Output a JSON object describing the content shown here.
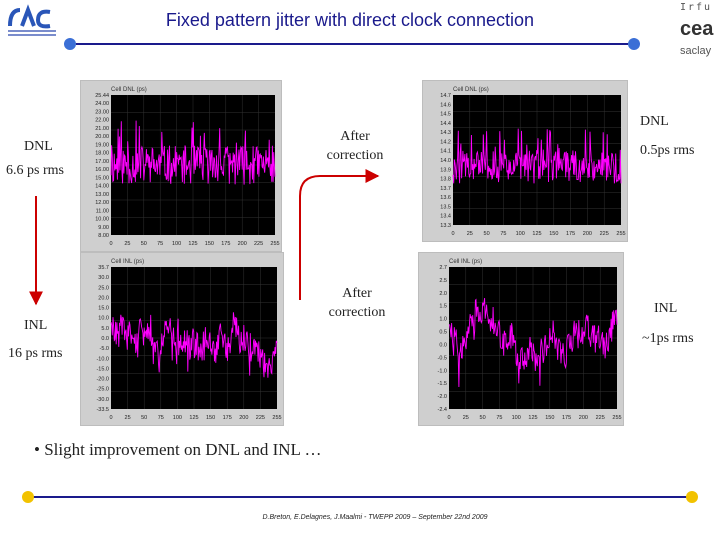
{
  "slide": {
    "title": "Fixed pattern jitter with direct clock connection",
    "footer": "D.Breton, E.Delagnes, J.Maalmi - TWEPP 2009 – September 22nd 2009",
    "bullet": "Slight improvement on DNL and INL …"
  },
  "logos": {
    "left_alt": "LAL logo",
    "right_lines": [
      "Irfu",
      "cea",
      "saclay"
    ]
  },
  "labels": {
    "dnl_before_title": "DNL",
    "dnl_before_value": "6.6 ps rms",
    "inl_before_title": "INL",
    "inl_before_value": "16 ps rms",
    "after_correction_1": "After\ncorrection",
    "after_correction_2": "After\ncorrection",
    "dnl_after_title": "DNL",
    "dnl_after_value": "0.5ps rms",
    "inl_after_title": "INL",
    "inl_after_value": "~1ps rms"
  },
  "colors": {
    "title": "#1a1a8c",
    "trace": "#ff00ff",
    "plot_bg": "#000000",
    "arrow": "#cc0000",
    "divider": "#1a1a8c",
    "dot": "#3b6fd6",
    "footer_dot": "#f2c200"
  },
  "plots": {
    "dnl_before": {
      "header": "Cell DNL (ps)",
      "y_ticks": [
        "25.44",
        "24.00",
        "23.00",
        "22.00",
        "21.00",
        "20.00",
        "19.00",
        "18.00",
        "17.00",
        "16.00",
        "15.00",
        "14.00",
        "13.00",
        "12.00",
        "11.00",
        "10.00",
        "9.00",
        "8.00"
      ],
      "x_ticks": [
        "0",
        "25",
        "50",
        "75",
        "100",
        "125",
        "150",
        "175",
        "200",
        "225",
        "255"
      ]
    },
    "inl_before": {
      "header": "Cell INL (ps)",
      "y_ticks": [
        "35.7",
        "30.0",
        "25.0",
        "20.0",
        "15.0",
        "10.0",
        "5.0",
        "0.0",
        "-5.0",
        "-10.0",
        "-15.0",
        "-20.0",
        "-25.0",
        "-30.0",
        "-33.5"
      ],
      "x_ticks": [
        "0",
        "25",
        "50",
        "75",
        "100",
        "125",
        "150",
        "175",
        "200",
        "225",
        "255"
      ]
    },
    "dnl_after": {
      "header": "Cell DNL (ps)",
      "y_ticks": [
        "14.7",
        "14.6",
        "14.5",
        "14.4",
        "14.3",
        "14.2",
        "14.1",
        "14.0",
        "13.9",
        "13.8",
        "13.7",
        "13.6",
        "13.5",
        "13.4",
        "13.3"
      ],
      "x_ticks": [
        "0",
        "25",
        "50",
        "75",
        "100",
        "125",
        "150",
        "175",
        "200",
        "225",
        "255"
      ]
    },
    "inl_after": {
      "header": "Cell INL (ps)",
      "y_ticks": [
        "2.7",
        "2.5",
        "2.0",
        "1.5",
        "1.0",
        "0.5",
        "0.0",
        "-0.5",
        "-1.0",
        "-1.5",
        "-2.0",
        "-2.4"
      ],
      "x_ticks": [
        "0",
        "25",
        "50",
        "75",
        "100",
        "125",
        "150",
        "175",
        "200",
        "225",
        "255"
      ]
    }
  }
}
